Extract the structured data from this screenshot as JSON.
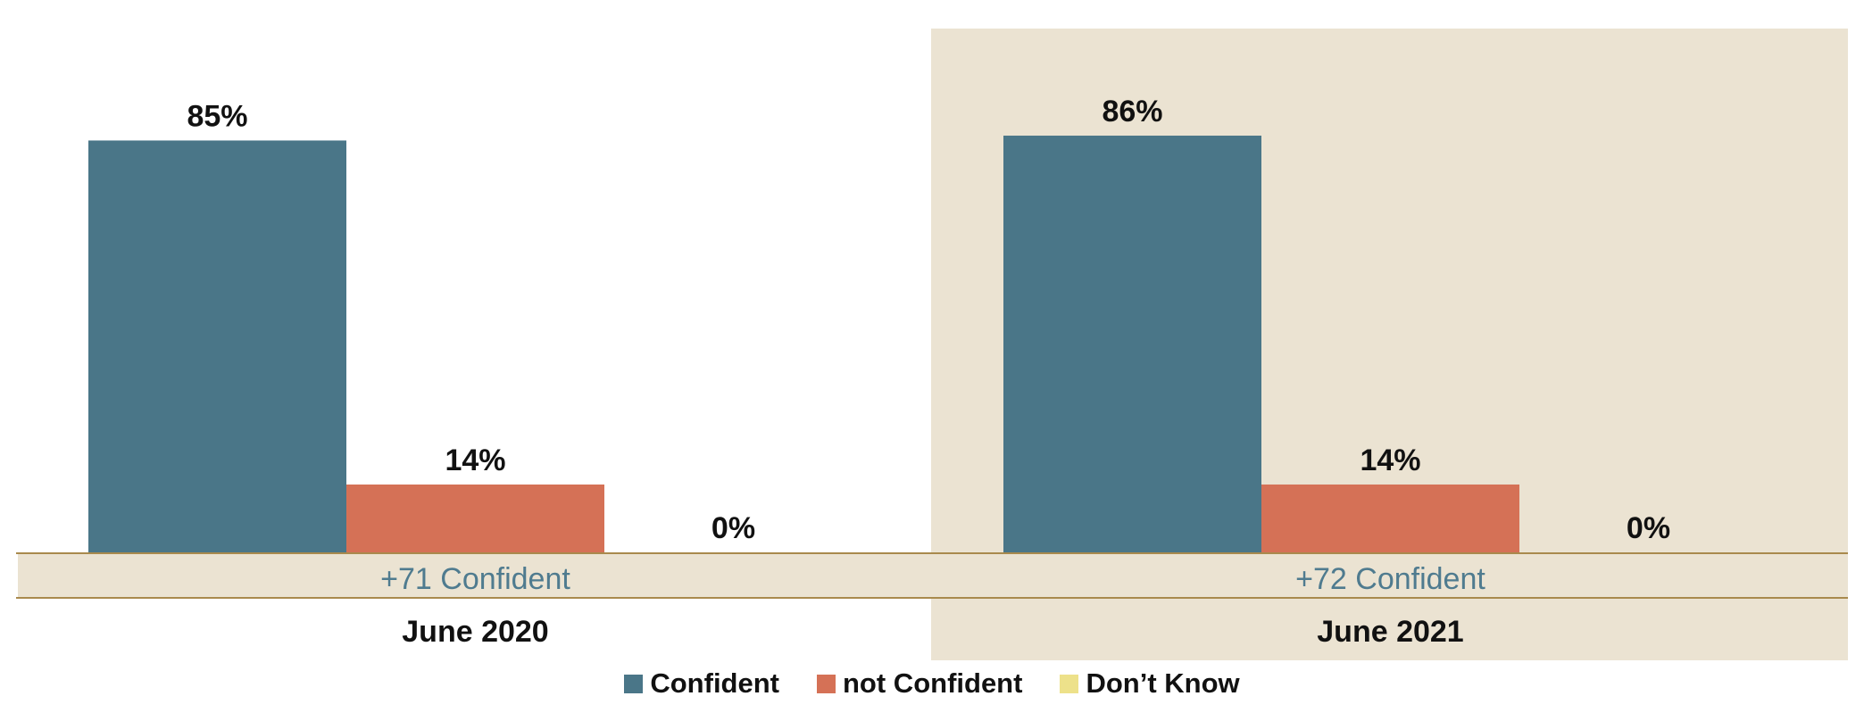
{
  "chart_data": {
    "type": "bar",
    "categories": [
      "June 2020",
      "June 2021"
    ],
    "series": [
      {
        "name": "Confident",
        "values": [
          85,
          86
        ],
        "labels": [
          "85%",
          "86%"
        ],
        "color": "#4a7688"
      },
      {
        "name": "not Confident",
        "values": [
          14,
          14
        ],
        "labels": [
          "14%",
          "14%"
        ],
        "color": "#d57156"
      },
      {
        "name": "Don’t Know",
        "values": [
          0,
          0
        ],
        "labels": [
          "0%",
          "0%"
        ],
        "color": "#ede18a"
      }
    ],
    "net_labels": [
      "+71 Confident",
      "+72 Confident"
    ],
    "ylim": [
      0,
      100
    ],
    "legend_position": "bottom",
    "colors": {
      "panel_highlight": "#ebe3d2",
      "rule": "#a98a4d",
      "net_text": "#4f7b8f"
    }
  }
}
